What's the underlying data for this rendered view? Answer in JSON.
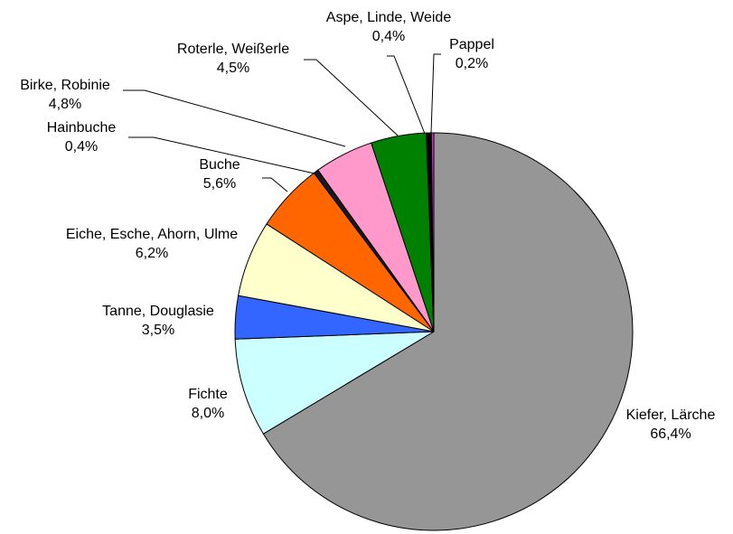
{
  "chart_data": {
    "type": "pie",
    "categories": [
      "Kiefer, Lärche",
      "Fichte",
      "Tanne, Douglasie",
      "Eiche, Esche, Ahorn, Ulme",
      "Buche",
      "Hainbuche",
      "Birke, Robinie",
      "Roterle, Weißerle",
      "Aspe, Linde, Weide",
      "Pappel"
    ],
    "values": [
      66.4,
      8.0,
      3.5,
      6.2,
      5.6,
      0.4,
      4.8,
      4.5,
      0.4,
      0.2
    ],
    "value_labels": [
      "66,4%",
      "8,0%",
      "3,5%",
      "6,2%",
      "5,6%",
      "0,4%",
      "4,8%",
      "4,5%",
      "0,4%",
      "0,2%"
    ],
    "colors": [
      "#969696",
      "#ccffff",
      "#3366ff",
      "#ffffcc",
      "#ff6600",
      "#1a1a1a",
      "#ff99cc",
      "#008000",
      "#000000",
      "#cc33cc"
    ]
  }
}
